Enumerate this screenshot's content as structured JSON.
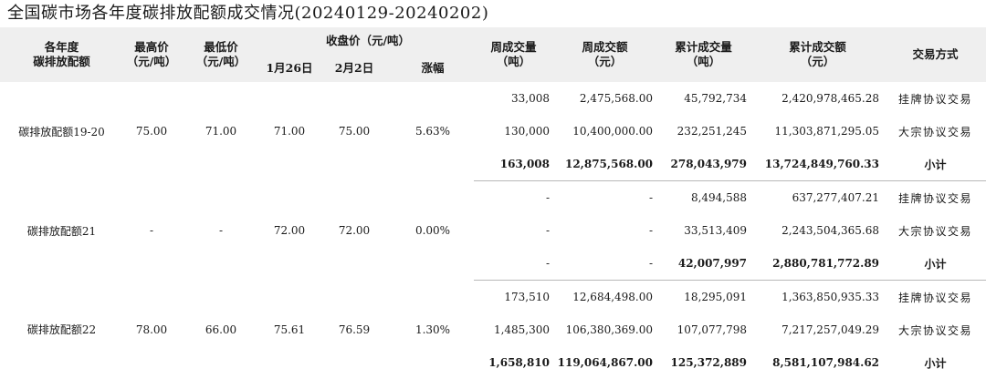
{
  "title": "全国碳市场各年度碳排放配额成交情况(20240129-20240202)",
  "headers": {
    "allowance": [
      "各年度",
      "碳排放配额"
    ],
    "max_price": [
      "最高价",
      "（元/吨）"
    ],
    "min_price": [
      "最低价",
      "（元/吨）"
    ],
    "close_price": "收盘价（元/吨）",
    "jan26": "1月26日",
    "feb2": "2月2日",
    "change": "涨幅",
    "weekly_volume": [
      "周成交量",
      "（吨）"
    ],
    "weekly_amount": [
      "周成交额",
      "（元）"
    ],
    "cum_volume": [
      "累计成交量",
      "（吨）"
    ],
    "cum_amount": [
      "累计成交额",
      "（元）"
    ],
    "method": "交易方式"
  },
  "groups": [
    {
      "name": "碳排放配额19-20",
      "max_price": "75.00",
      "min_price": "71.00",
      "close_jan26": "71.00",
      "close_feb2": "75.00",
      "change": "5.63%",
      "rows": [
        {
          "weekly_volume": "33,008",
          "weekly_amount": "2,475,568.00",
          "cum_volume": "45,792,734",
          "cum_amount": "2,420,978,465.28",
          "method": "挂牌协议交易"
        },
        {
          "weekly_volume": "130,000",
          "weekly_amount": "10,400,000.00",
          "cum_volume": "232,251,245",
          "cum_amount": "11,303,871,295.05",
          "method": "大宗协议交易"
        },
        {
          "weekly_volume": "163,008",
          "weekly_amount": "12,875,568.00",
          "cum_volume": "278,043,979",
          "cum_amount": "13,724,849,760.33",
          "method": "小计"
        }
      ]
    },
    {
      "name": "碳排放配额21",
      "max_price": "-",
      "min_price": "-",
      "close_jan26": "72.00",
      "close_feb2": "72.00",
      "change": "0.00%",
      "rows": [
        {
          "weekly_volume": "-",
          "weekly_amount": "-",
          "cum_volume": "8,494,588",
          "cum_amount": "637,277,407.21",
          "method": "挂牌协议交易"
        },
        {
          "weekly_volume": "-",
          "weekly_amount": "-",
          "cum_volume": "33,513,409",
          "cum_amount": "2,243,504,365.68",
          "method": "大宗协议交易"
        },
        {
          "weekly_volume": "-",
          "weekly_amount": "-",
          "cum_volume": "42,007,997",
          "cum_amount": "2,880,781,772.89",
          "method": "小计"
        }
      ]
    },
    {
      "name": "碳排放配额22",
      "max_price": "78.00",
      "min_price": "66.00",
      "close_jan26": "75.61",
      "close_feb2": "76.59",
      "change": "1.30%",
      "rows": [
        {
          "weekly_volume": "173,510",
          "weekly_amount": "12,684,498.00",
          "cum_volume": "18,295,091",
          "cum_amount": "1,363,850,935.33",
          "method": "挂牌协议交易"
        },
        {
          "weekly_volume": "1,485,300",
          "weekly_amount": "106,380,369.00",
          "cum_volume": "107,077,798",
          "cum_amount": "7,217,257,049.29",
          "method": "大宗协议交易"
        },
        {
          "weekly_volume": "1,658,810",
          "weekly_amount": "119,064,867.00",
          "cum_volume": "125,372,889",
          "cum_amount": "8,581,107,984.62",
          "method": "小计"
        }
      ]
    }
  ]
}
